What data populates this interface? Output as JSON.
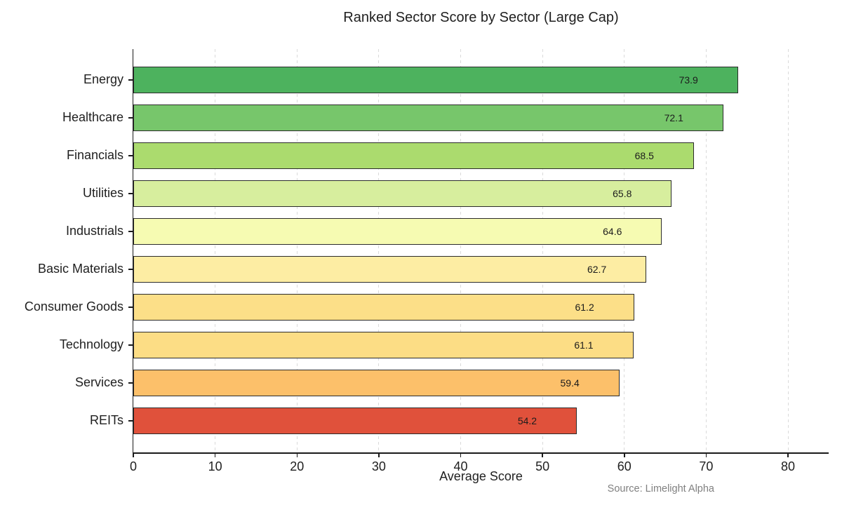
{
  "chart_data": {
    "type": "bar",
    "orientation": "horizontal",
    "title": "Ranked Sector Score by Sector (Large Cap)",
    "xlabel": "Average Score",
    "ylabel": "",
    "source": "Source: Limelight Alpha",
    "categories": [
      "Energy",
      "Healthcare",
      "Financials",
      "Utilities",
      "Industrials",
      "Basic Materials",
      "Consumer Goods",
      "Technology",
      "Services",
      "REITs"
    ],
    "values": [
      73.9,
      72.1,
      68.5,
      65.8,
      64.6,
      62.7,
      61.2,
      61.1,
      59.4,
      54.2
    ],
    "value_labels": [
      "73.9",
      "72.1",
      "68.5",
      "65.8",
      "64.6",
      "62.7",
      "61.2",
      "61.1",
      "59.4",
      "54.2"
    ],
    "bar_colors": [
      "#4db25e",
      "#77c66b",
      "#abdb6e",
      "#d7ee9e",
      "#f6fbb2",
      "#fdeda3",
      "#fcdf88",
      "#fcdd85",
      "#fcc06a",
      "#e0513b"
    ],
    "bar_edge_color": "#2b2b2b",
    "xlim": [
      0,
      85
    ],
    "xticks": [
      0,
      10,
      20,
      30,
      40,
      50,
      60,
      70,
      80
    ],
    "grid": {
      "axis": "x",
      "style": "dashed",
      "color": "#dadada"
    },
    "legend": "none",
    "colors": {
      "text": "#1f1f1f",
      "source_text": "#808080",
      "axis": "#1a1a1a"
    }
  }
}
